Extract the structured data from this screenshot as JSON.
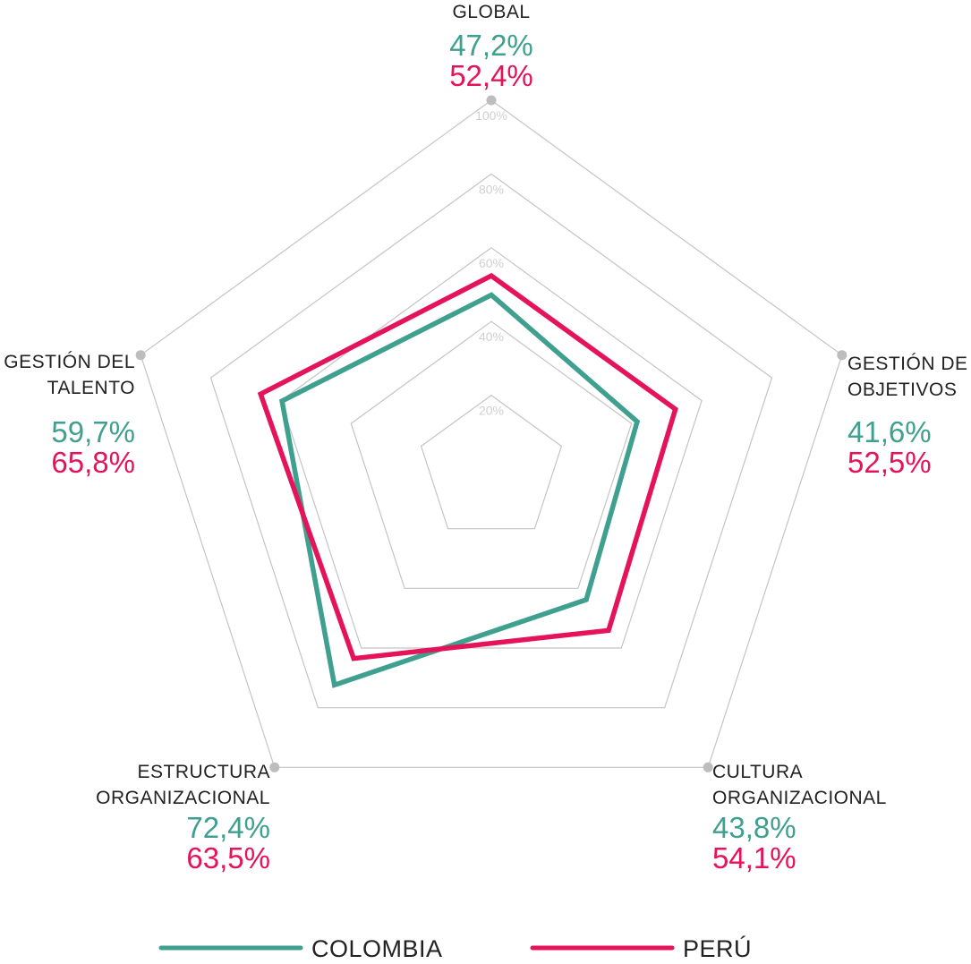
{
  "chart_data": {
    "type": "radar",
    "axes": [
      {
        "label_lines": [
          "GLOBAL"
        ]
      },
      {
        "label_lines": [
          "GESTIÓN DE",
          "OBJETIVOS"
        ]
      },
      {
        "label_lines": [
          "CULTURA",
          "ORGANIZACIONAL"
        ]
      },
      {
        "label_lines": [
          "ESTRUCTURA",
          "ORGANIZACIONAL"
        ]
      },
      {
        "label_lines": [
          "GESTIÓN DEL",
          "TALENTO"
        ]
      }
    ],
    "rlim": [
      0,
      100
    ],
    "ticks": [
      20,
      40,
      60,
      80,
      100
    ],
    "tick_labels": [
      "20%",
      "40%",
      "60%",
      "80%",
      "100%"
    ],
    "series": [
      {
        "name": "COLOMBIA",
        "color": "#3fa08f",
        "values": [
          47.2,
          41.6,
          43.8,
          72.4,
          59.7
        ],
        "value_labels": [
          "47,2%",
          "41,6%",
          "43,8%",
          "72,4%",
          "59,7%"
        ]
      },
      {
        "name": "PERÚ",
        "color": "#e5135a",
        "values": [
          52.4,
          52.5,
          54.1,
          63.5,
          65.8
        ],
        "value_labels": [
          "52,4%",
          "52,5%",
          "54,1%",
          "63,5%",
          "65,8%"
        ]
      }
    ],
    "grid": true,
    "legend": "bottom"
  }
}
